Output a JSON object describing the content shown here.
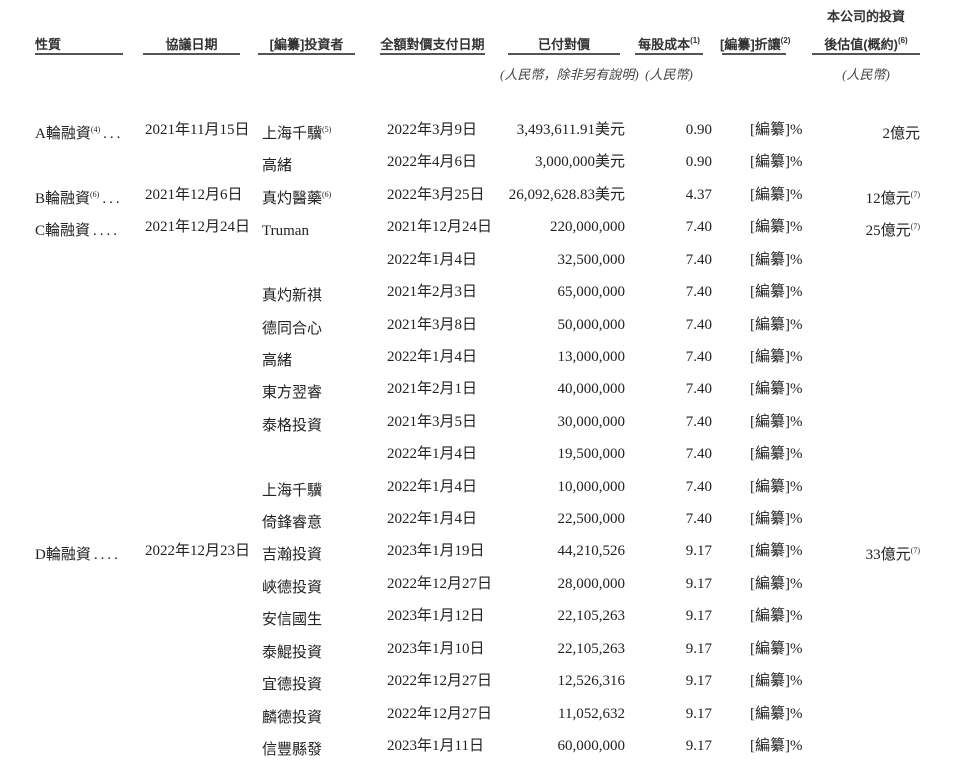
{
  "header": {
    "nature": "性質",
    "agreement_date": "協議日期",
    "investor": "[編纂]投資者",
    "full_payment_date": "全額對價支付日期",
    "paid": "已付對價",
    "cost_per_share": "每股成本",
    "cost_per_share_sup": "(1)",
    "discount": "[編纂]折讓",
    "discount_sup": "(2)",
    "valuation_line1": "本公司的投資",
    "valuation_line2": "後估值(概約)",
    "valuation_sup": "(6)",
    "paid_unit": "(人民幣，除非另有說明)",
    "cost_unit": "(人民幣)",
    "valuation_unit": "(人民幣)"
  },
  "rows": [
    {
      "nature": "A輪融資",
      "nature_sup": "(4)",
      "dots": "...",
      "date": "2021年11月15日",
      "investor": "上海千驥",
      "investor_sup": "(5)",
      "pay_date": "2022年3月9日",
      "paid": "3,493,611.91美元",
      "cost": "0.90",
      "discount": "[編纂]%",
      "valuation": "2億元",
      "valuation_sup": ""
    },
    {
      "nature": "",
      "nature_sup": "",
      "dots": "",
      "date": "",
      "investor": "高緒",
      "investor_sup": "",
      "pay_date": "2022年4月6日",
      "paid": "3,000,000美元",
      "cost": "0.90",
      "discount": "[編纂]%",
      "valuation": "",
      "valuation_sup": ""
    },
    {
      "nature": "B輪融資",
      "nature_sup": "(6)",
      "dots": "...",
      "date": "2021年12月6日",
      "investor": "真灼醫藥",
      "investor_sup": "(6)",
      "pay_date": "2022年3月25日",
      "paid": "26,092,628.83美元",
      "cost": "4.37",
      "discount": "[編纂]%",
      "valuation": "12億元",
      "valuation_sup": "(7)"
    },
    {
      "nature": "C輪融資",
      "nature_sup": "",
      "dots": "....",
      "date": "2021年12月24日",
      "investor": "Truman",
      "investor_sup": "",
      "pay_date": "2021年12月24日",
      "paid": "220,000,000",
      "cost": "7.40",
      "discount": "[編纂]%",
      "valuation": "25億元",
      "valuation_sup": "(7)"
    },
    {
      "nature": "",
      "nature_sup": "",
      "dots": "",
      "date": "",
      "investor": "",
      "investor_sup": "",
      "pay_date": "2022年1月4日",
      "paid": "32,500,000",
      "cost": "7.40",
      "discount": "[編纂]%",
      "valuation": "",
      "valuation_sup": ""
    },
    {
      "nature": "",
      "nature_sup": "",
      "dots": "",
      "date": "",
      "investor": "真灼新祺",
      "investor_sup": "",
      "pay_date": "2021年2月3日",
      "paid": "65,000,000",
      "cost": "7.40",
      "discount": "[編纂]%",
      "valuation": "",
      "valuation_sup": ""
    },
    {
      "nature": "",
      "nature_sup": "",
      "dots": "",
      "date": "",
      "investor": "德同合心",
      "investor_sup": "",
      "pay_date": "2021年3月8日",
      "paid": "50,000,000",
      "cost": "7.40",
      "discount": "[編纂]%",
      "valuation": "",
      "valuation_sup": ""
    },
    {
      "nature": "",
      "nature_sup": "",
      "dots": "",
      "date": "",
      "investor": "高緒",
      "investor_sup": "",
      "pay_date": "2022年1月4日",
      "paid": "13,000,000",
      "cost": "7.40",
      "discount": "[編纂]%",
      "valuation": "",
      "valuation_sup": ""
    },
    {
      "nature": "",
      "nature_sup": "",
      "dots": "",
      "date": "",
      "investor": "東方翌睿",
      "investor_sup": "",
      "pay_date": "2021年2月1日",
      "paid": "40,000,000",
      "cost": "7.40",
      "discount": "[編纂]%",
      "valuation": "",
      "valuation_sup": ""
    },
    {
      "nature": "",
      "nature_sup": "",
      "dots": "",
      "date": "",
      "investor": "泰格投資",
      "investor_sup": "",
      "pay_date": "2021年3月5日",
      "paid": "30,000,000",
      "cost": "7.40",
      "discount": "[編纂]%",
      "valuation": "",
      "valuation_sup": ""
    },
    {
      "nature": "",
      "nature_sup": "",
      "dots": "",
      "date": "",
      "investor": "",
      "investor_sup": "",
      "pay_date": "2022年1月4日",
      "paid": "19,500,000",
      "cost": "7.40",
      "discount": "[編纂]%",
      "valuation": "",
      "valuation_sup": ""
    },
    {
      "nature": "",
      "nature_sup": "",
      "dots": "",
      "date": "",
      "investor": "上海千驥",
      "investor_sup": "",
      "pay_date": "2022年1月4日",
      "paid": "10,000,000",
      "cost": "7.40",
      "discount": "[編纂]%",
      "valuation": "",
      "valuation_sup": ""
    },
    {
      "nature": "",
      "nature_sup": "",
      "dots": "",
      "date": "",
      "investor": "倚鋒睿意",
      "investor_sup": "",
      "pay_date": "2022年1月4日",
      "paid": "22,500,000",
      "cost": "7.40",
      "discount": "[編纂]%",
      "valuation": "",
      "valuation_sup": ""
    },
    {
      "nature": "D輪融資",
      "nature_sup": "",
      "dots": "....",
      "date": "2022年12月23日",
      "investor": "吉瀚投資",
      "investor_sup": "",
      "pay_date": "2023年1月19日",
      "paid": "44,210,526",
      "cost": "9.17",
      "discount": "[編纂]%",
      "valuation": "33億元",
      "valuation_sup": "(7)"
    },
    {
      "nature": "",
      "nature_sup": "",
      "dots": "",
      "date": "",
      "investor": "峽德投資",
      "investor_sup": "",
      "pay_date": "2022年12月27日",
      "paid": "28,000,000",
      "cost": "9.17",
      "discount": "[編纂]%",
      "valuation": "",
      "valuation_sup": ""
    },
    {
      "nature": "",
      "nature_sup": "",
      "dots": "",
      "date": "",
      "investor": "安信國生",
      "investor_sup": "",
      "pay_date": "2023年1月12日",
      "paid": "22,105,263",
      "cost": "9.17",
      "discount": "[編纂]%",
      "valuation": "",
      "valuation_sup": ""
    },
    {
      "nature": "",
      "nature_sup": "",
      "dots": "",
      "date": "",
      "investor": "泰鯤投資",
      "investor_sup": "",
      "pay_date": "2023年1月10日",
      "paid": "22,105,263",
      "cost": "9.17",
      "discount": "[編纂]%",
      "valuation": "",
      "valuation_sup": ""
    },
    {
      "nature": "",
      "nature_sup": "",
      "dots": "",
      "date": "",
      "investor": "宜德投資",
      "investor_sup": "",
      "pay_date": "2022年12月27日",
      "paid": "12,526,316",
      "cost": "9.17",
      "discount": "[編纂]%",
      "valuation": "",
      "valuation_sup": ""
    },
    {
      "nature": "",
      "nature_sup": "",
      "dots": "",
      "date": "",
      "investor": "麟德投資",
      "investor_sup": "",
      "pay_date": "2022年12月27日",
      "paid": "11,052,632",
      "cost": "9.17",
      "discount": "[編纂]%",
      "valuation": "",
      "valuation_sup": ""
    },
    {
      "nature": "",
      "nature_sup": "",
      "dots": "",
      "date": "",
      "investor": "信豐縣發",
      "investor_sup": "",
      "pay_date": "2023年1月11日",
      "paid": "60,000,000",
      "cost": "9.17",
      "discount": "[編纂]%",
      "valuation": "",
      "valuation_sup": ""
    }
  ]
}
